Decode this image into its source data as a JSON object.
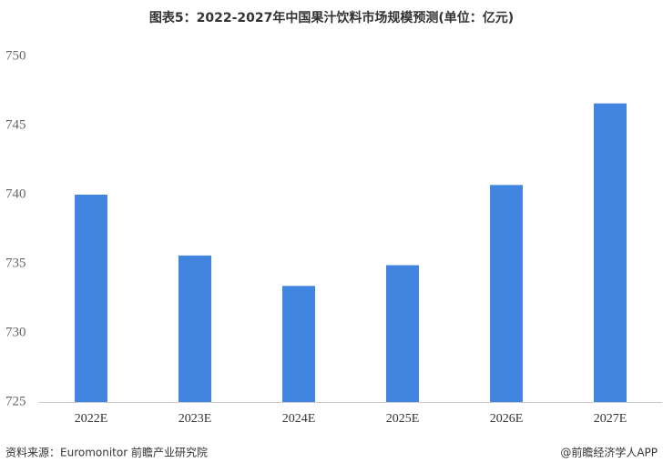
{
  "chart_data": {
    "type": "bar",
    "title": "图表5：2022-2027年中国果汁饮料市场规模预测(单位：亿元)",
    "categories": [
      "2022E",
      "2023E",
      "2024E",
      "2025E",
      "2026E",
      "2027E"
    ],
    "values": [
      740.0,
      735.6,
      733.4,
      734.9,
      740.7,
      746.6
    ],
    "color": "#4285e0",
    "ylim": [
      725,
      750
    ],
    "yticks": [
      725,
      730,
      735,
      740,
      745,
      750
    ],
    "grid": false,
    "source": "资料来源：Euromonitor 前瞻产业研究院",
    "credit": "@前瞻经济学人APP"
  }
}
